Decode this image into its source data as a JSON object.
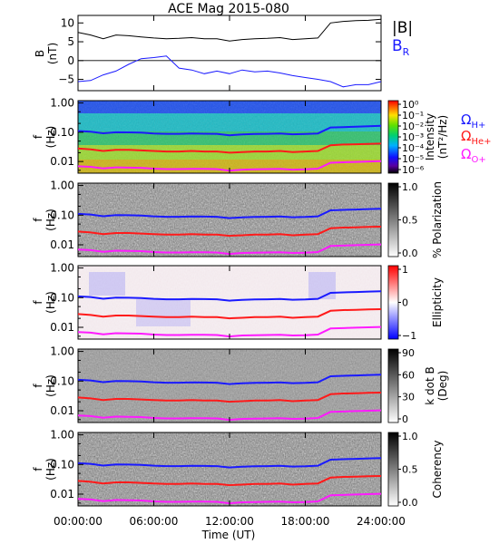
{
  "figure": {
    "title": "ACE Mag 2015-080",
    "xlabel": "Time (UT)",
    "xticks": [
      "00:00:00",
      "06:00:00",
      "12:00:00",
      "18:00:00",
      "24:00:00"
    ]
  },
  "legend": {
    "mag": [
      {
        "label": "|B|",
        "sub": "",
        "color": "#000000"
      },
      {
        "label": "B",
        "sub": "R",
        "color": "#1a1aff"
      }
    ],
    "gyro": [
      {
        "label": "Ω",
        "sub": "H+",
        "color": "#1a1aff"
      },
      {
        "label": "Ω",
        "sub": "He+",
        "color": "#ff1a1a"
      },
      {
        "label": "Ω",
        "sub": "O+",
        "color": "#ff1aff"
      }
    ]
  },
  "chart_data": [
    {
      "type": "line",
      "panel": "field",
      "ylabel": "B",
      "yunit": "(nT)",
      "yticks": [
        "10",
        "5",
        "0",
        "−5"
      ],
      "ytick_values": [
        10,
        5,
        0,
        -5
      ],
      "ylim": [
        -8,
        12
      ],
      "x": [
        0,
        1,
        2,
        3,
        4,
        5,
        6,
        7,
        8,
        9,
        10,
        11,
        12,
        13,
        14,
        15,
        16,
        17,
        18,
        19,
        20,
        21,
        22,
        23,
        24
      ],
      "series": [
        {
          "name": "|B|",
          "color": "#000000",
          "values": [
            7.5,
            6.8,
            5.8,
            6.8,
            6.6,
            6.3,
            6.0,
            5.8,
            5.9,
            6.1,
            5.8,
            5.8,
            5.2,
            5.6,
            5.8,
            5.9,
            6.1,
            5.6,
            5.8,
            6.0,
            10.0,
            10.4,
            10.6,
            10.7,
            11.0
          ]
        },
        {
          "name": "B_R",
          "color": "#1a1aff",
          "values": [
            -5.6,
            -5.3,
            -3.8,
            -2.8,
            -1.0,
            0.5,
            0.8,
            1.2,
            -2.0,
            -2.5,
            -3.5,
            -2.8,
            -3.5,
            -2.5,
            -3.0,
            -2.8,
            -3.3,
            -4.0,
            -4.5,
            -5.0,
            -5.6,
            -7.0,
            -6.4,
            -6.4,
            -5.6
          ]
        }
      ]
    },
    {
      "type": "heatmap",
      "panel": "power",
      "ylabel": "f",
      "yunit": "(Hz)",
      "yticks": [
        "1.00",
        "0.10",
        "0.01"
      ],
      "ylim": [
        0.004,
        1.2
      ],
      "colorbar": {
        "label": "Intensity",
        "unit": "(nT²/Hz)",
        "colormap": "rainbow",
        "ticks": [
          "10⁰",
          "10⁻¹",
          "10⁻²",
          "10⁻³",
          "10⁻⁴",
          "10⁻⁵",
          "10⁻⁶"
        ]
      }
    },
    {
      "type": "heatmap",
      "panel": "polarization",
      "ylabel": "f",
      "yunit": "(Hz)",
      "yticks": [
        "1.00",
        "0.10",
        "0.01"
      ],
      "ylim": [
        0.004,
        1.2
      ],
      "colorbar": {
        "label": "% Polarization",
        "unit": "",
        "colormap": "gray",
        "ticks": [
          "1.0",
          "0.5",
          "0.0"
        ]
      }
    },
    {
      "type": "heatmap",
      "panel": "ellipticity",
      "ylabel": "f",
      "yunit": "(Hz)",
      "yticks": [
        "1.00",
        "0.10",
        "0.01"
      ],
      "ylim": [
        0.004,
        1.2
      ],
      "colorbar": {
        "label": "Ellipticity",
        "unit": "",
        "colormap": "bwr",
        "ticks": [
          "1",
          "0",
          "−1"
        ]
      }
    },
    {
      "type": "heatmap",
      "panel": "kdotb",
      "ylabel": "f",
      "yunit": "(Hz)",
      "yticks": [
        "1.00",
        "0.10",
        "0.01"
      ],
      "ylim": [
        0.004,
        1.2
      ],
      "colorbar": {
        "label": "k dot B",
        "unit": "(Deg)",
        "colormap": "gray",
        "ticks": [
          "90",
          "60",
          "30",
          "0"
        ]
      }
    },
    {
      "type": "heatmap",
      "panel": "coherency",
      "ylabel": "f",
      "yunit": "(Hz)",
      "yticks": [
        "1.00",
        "0.10",
        "0.01"
      ],
      "ylim": [
        0.004,
        1.2
      ],
      "colorbar": {
        "label": "Coherency",
        "unit": "",
        "colormap": "gray",
        "ticks": [
          "1.0",
          "0.5",
          "0.0"
        ]
      }
    }
  ],
  "gyrofrequencies": {
    "x": [
      0,
      1,
      2,
      3,
      4,
      5,
      6,
      7,
      8,
      9,
      10,
      11,
      12,
      13,
      14,
      15,
      16,
      17,
      18,
      19,
      20,
      21,
      22,
      23,
      24
    ],
    "H+": [
      0.11,
      0.105,
      0.092,
      0.1,
      0.099,
      0.097,
      0.091,
      0.088,
      0.088,
      0.09,
      0.089,
      0.088,
      0.079,
      0.084,
      0.087,
      0.088,
      0.09,
      0.085,
      0.087,
      0.091,
      0.145,
      0.15,
      0.155,
      0.16,
      0.165
    ],
    "He+": [
      0.028,
      0.026,
      0.023,
      0.025,
      0.025,
      0.024,
      0.023,
      0.022,
      0.022,
      0.023,
      0.022,
      0.022,
      0.02,
      0.021,
      0.022,
      0.022,
      0.023,
      0.021,
      0.022,
      0.023,
      0.036,
      0.038,
      0.039,
      0.04,
      0.041
    ],
    "O+": [
      0.0069,
      0.0066,
      0.0058,
      0.0063,
      0.0062,
      0.0061,
      0.0057,
      0.0055,
      0.0055,
      0.0056,
      0.0056,
      0.0055,
      0.0049,
      0.0053,
      0.0054,
      0.0055,
      0.0056,
      0.0053,
      0.0054,
      0.0057,
      0.0091,
      0.0094,
      0.0097,
      0.01,
      0.0103
    ]
  }
}
